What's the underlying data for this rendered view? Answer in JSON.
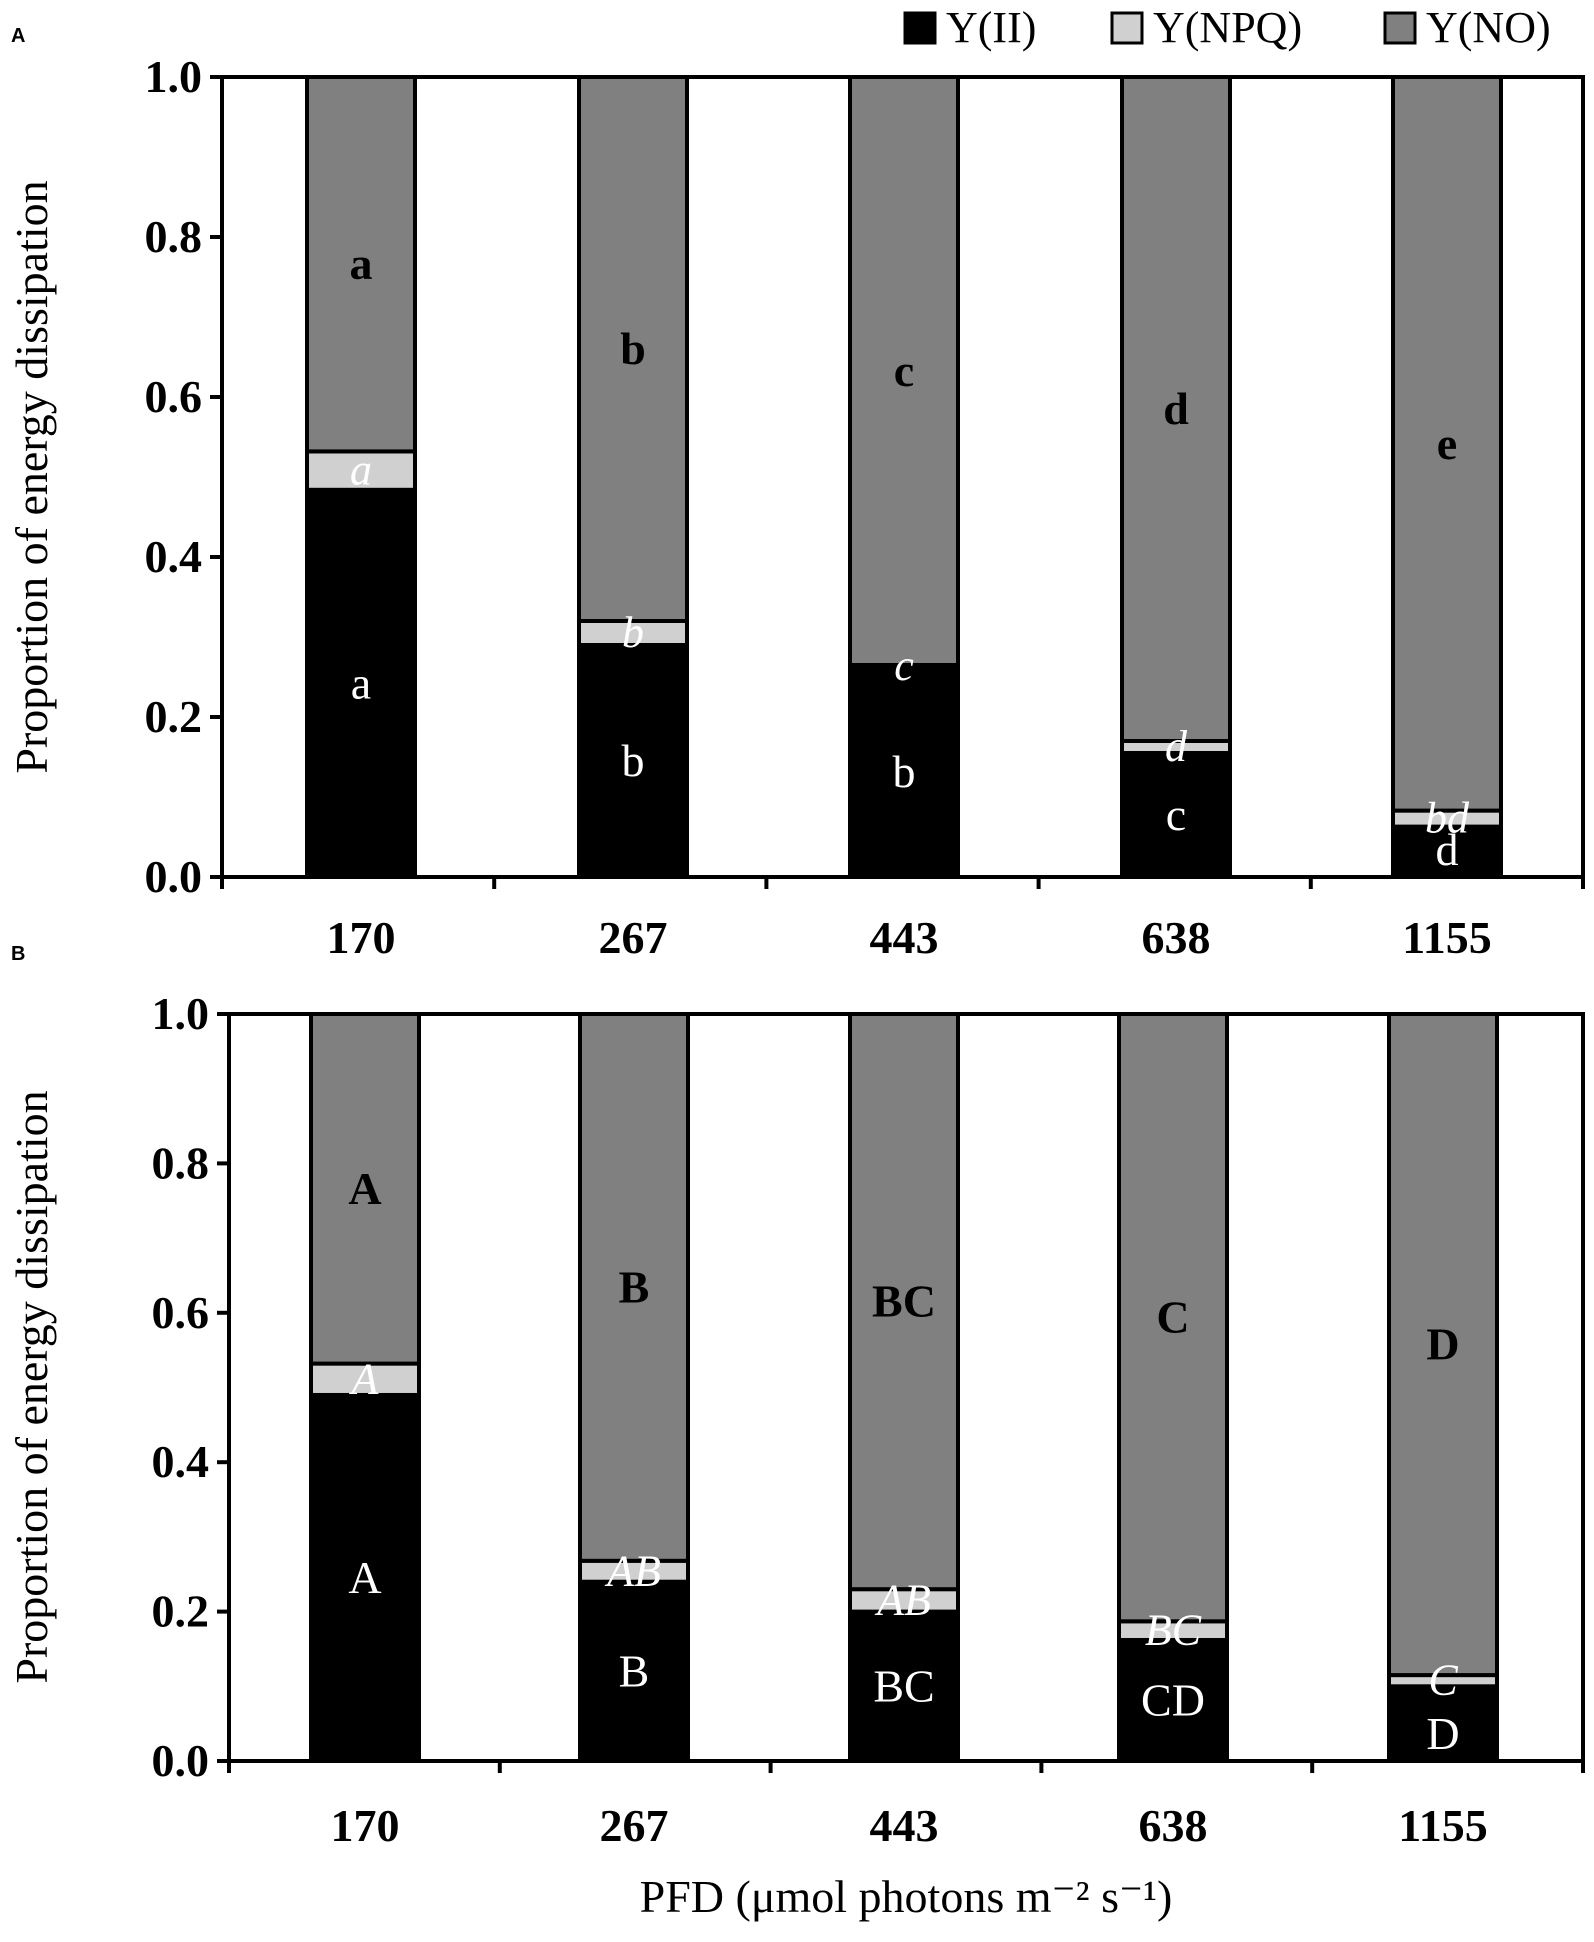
{
  "figure": {
    "legend": {
      "position": "top-right",
      "entries": [
        {
          "label": "Y(II)",
          "color": "#000000"
        },
        {
          "label": "Y(NPQ)",
          "color": "#d0d0d0"
        },
        {
          "label": "Y(NO)",
          "color": "#808080"
        }
      ]
    },
    "xlabel": "PFD (μmol photons m⁻² s⁻¹)"
  },
  "chart_data": [
    {
      "panel": "A",
      "type": "bar",
      "stacked": true,
      "ylabel": "Proportion of energy dissipation",
      "ylim": [
        0,
        1.0
      ],
      "yticks": [
        "0.0",
        "0.2",
        "0.4",
        "0.6",
        "0.8",
        "1.0"
      ],
      "categories": [
        "170",
        "267",
        "443",
        "638",
        "1155"
      ],
      "series": [
        {
          "name": "Y(II)",
          "color": "#000000",
          "values": [
            0.484,
            0.29,
            0.263,
            0.155,
            0.063
          ]
        },
        {
          "name": "Y(NPQ)",
          "color": "#d0d0d0",
          "values": [
            0.048,
            0.03,
            0.002,
            0.015,
            0.02
          ]
        },
        {
          "name": "Y(NO)",
          "color": "#808080",
          "values": [
            0.468,
            0.68,
            0.735,
            0.83,
            0.917
          ]
        }
      ],
      "letters": {
        "Y(II)": [
          "a",
          "b",
          "b",
          "c",
          "d"
        ],
        "Y(NPQ)": [
          "a",
          "b",
          "c",
          "d",
          "bd"
        ],
        "Y(NO)": [
          "a",
          "b",
          "c",
          "d",
          "e"
        ]
      }
    },
    {
      "panel": "B",
      "type": "bar",
      "stacked": true,
      "ylabel": "Proportion of energy dissipation",
      "ylim": [
        0,
        1.0
      ],
      "yticks": [
        "0.0",
        "0.2",
        "0.4",
        "0.6",
        "0.8",
        "1.0"
      ],
      "categories": [
        "170",
        "267",
        "443",
        "638",
        "1155"
      ],
      "series": [
        {
          "name": "Y(II)",
          "color": "#000000",
          "values": [
            0.49,
            0.24,
            0.2,
            0.162,
            0.1
          ]
        },
        {
          "name": "Y(NPQ)",
          "color": "#d0d0d0",
          "values": [
            0.042,
            0.028,
            0.03,
            0.025,
            0.015
          ]
        },
        {
          "name": "Y(NO)",
          "color": "#808080",
          "values": [
            0.468,
            0.732,
            0.77,
            0.813,
            0.885
          ]
        }
      ],
      "letters": {
        "Y(II)": [
          "A",
          "B",
          "BC",
          "CD",
          "D"
        ],
        "Y(NPQ)": [
          "A",
          "AB",
          "AB",
          "BC",
          "C"
        ],
        "Y(NO)": [
          "A",
          "B",
          "BC",
          "C",
          "D"
        ]
      }
    }
  ]
}
